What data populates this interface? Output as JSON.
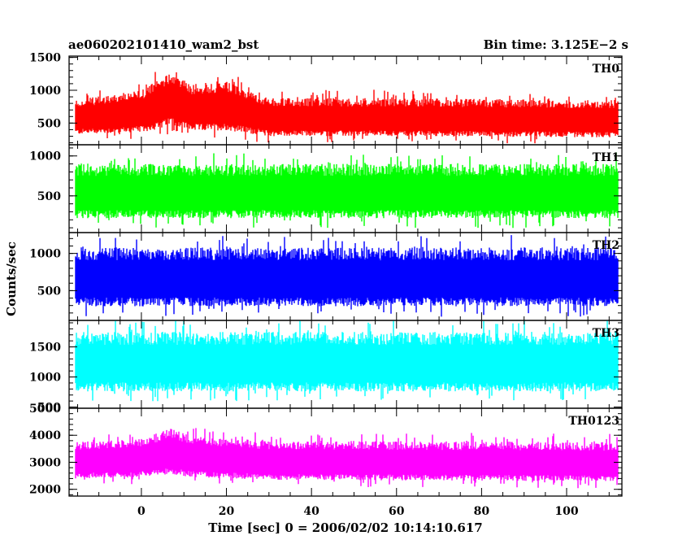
{
  "header": {
    "title": "ae060202101410_wam2_bst",
    "bin_time": "Bin time: 3.125E−2 s"
  },
  "chart_data": {
    "type": "line",
    "title": "ae060202101410_wam2_bst",
    "xlabel": "Time [sec] 0 = 2006/02/02 10:14:10.617",
    "ylabel": "Counts/sec",
    "xlim": [
      -17,
      113
    ],
    "x_tick_values": [
      0,
      20,
      40,
      60,
      80,
      100
    ],
    "x_tick_labels": [
      "0",
      "20",
      "40",
      "60",
      "80",
      "100"
    ],
    "x_range": [
      -15.5,
      112
    ],
    "bin_time_s": 0.03125,
    "grid": false,
    "legend": "none",
    "panels": [
      {
        "name": "TH0",
        "color": "#ff0000",
        "ylim": [
          170,
          1520
        ],
        "tick_values": [
          500,
          1000,
          1500
        ],
        "tick_labels": [
          "500",
          "1000",
          "1500"
        ],
        "baseline": 630,
        "envelope": [
          {
            "x": -15,
            "low": 330,
            "high": 860
          },
          {
            "x": 0,
            "low": 360,
            "high": 1000
          },
          {
            "x": 5,
            "low": 420,
            "high": 1200
          },
          {
            "x": 7,
            "low": 480,
            "high": 1300
          },
          {
            "x": 12,
            "low": 380,
            "high": 1080
          },
          {
            "x": 20,
            "low": 390,
            "high": 1130
          },
          {
            "x": 30,
            "low": 300,
            "high": 880
          },
          {
            "x": 60,
            "low": 300,
            "high": 880
          },
          {
            "x": 90,
            "low": 290,
            "high": 860
          },
          {
            "x": 112,
            "low": 280,
            "high": 850
          }
        ]
      },
      {
        "name": "TH1",
        "color": "#00ff00",
        "ylim": [
          40,
          1140
        ],
        "tick_values": [
          500,
          1000
        ],
        "tick_labels": [
          "500",
          "1000"
        ],
        "baseline": 560,
        "envelope": [
          {
            "x": -15,
            "low": 220,
            "high": 900
          },
          {
            "x": 112,
            "low": 220,
            "high": 900
          }
        ]
      },
      {
        "name": "TH2",
        "color": "#0000ff",
        "ylim": [
          100,
          1280
        ],
        "tick_values": [
          500,
          1000
        ],
        "tick_labels": [
          "500",
          "1000"
        ],
        "baseline": 680,
        "envelope": [
          {
            "x": -15,
            "low": 290,
            "high": 1080
          },
          {
            "x": 112,
            "low": 290,
            "high": 1080
          }
        ]
      },
      {
        "name": "TH3",
        "color": "#00ffff",
        "ylim": [
          480,
          1940
        ],
        "tick_values": [
          500,
          1000,
          1500
        ],
        "tick_labels": [
          "500",
          "1000",
          "1500"
        ],
        "baseline": 1260,
        "envelope": [
          {
            "x": -15,
            "low": 760,
            "high": 1750
          },
          {
            "x": 112,
            "low": 760,
            "high": 1750
          }
        ]
      },
      {
        "name": "TH0123",
        "color": "#ff00ff",
        "ylim": [
          1750,
          5000
        ],
        "tick_values": [
          2000,
          3000,
          4000,
          5000
        ],
        "tick_labels": [
          "2000",
          "3000",
          "4000",
          "5000"
        ],
        "baseline": 3160,
        "envelope": [
          {
            "x": -15,
            "low": 2400,
            "high": 3750
          },
          {
            "x": 0,
            "low": 2450,
            "high": 3900
          },
          {
            "x": 7,
            "low": 2550,
            "high": 4250
          },
          {
            "x": 12,
            "low": 2450,
            "high": 3950
          },
          {
            "x": 30,
            "low": 2350,
            "high": 3800
          },
          {
            "x": 112,
            "low": 2300,
            "high": 3750
          }
        ]
      }
    ]
  }
}
